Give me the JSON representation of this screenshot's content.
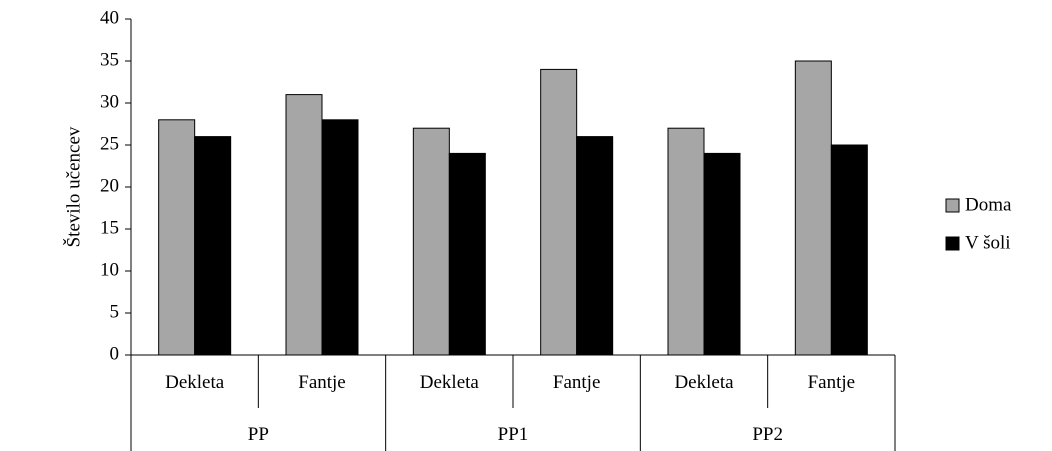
{
  "chart_data": {
    "type": "bar",
    "title": "",
    "xlabel": "",
    "ylabel": "Število učencev",
    "ylim": [
      0,
      40
    ],
    "ytick_step": 5,
    "yticks": [
      "0",
      "5",
      "10",
      "15",
      "20",
      "25",
      "30",
      "35",
      "40"
    ],
    "grid": false,
    "legend_position": "right",
    "groups": [
      {
        "label": "PP",
        "categories": [
          "Dekleta",
          "Fantje"
        ]
      },
      {
        "label": "PP1",
        "categories": [
          "Dekleta",
          "Fantje"
        ]
      },
      {
        "label": "PP2",
        "categories": [
          "Dekleta",
          "Fantje"
        ]
      }
    ],
    "series": [
      {
        "name": "Doma",
        "color": "#a6a6a6",
        "values": [
          28,
          31,
          27,
          34,
          27,
          35
        ]
      },
      {
        "name": "V šoli",
        "color": "#000000",
        "values": [
          26,
          28,
          24,
          26,
          24,
          25
        ]
      }
    ]
  }
}
